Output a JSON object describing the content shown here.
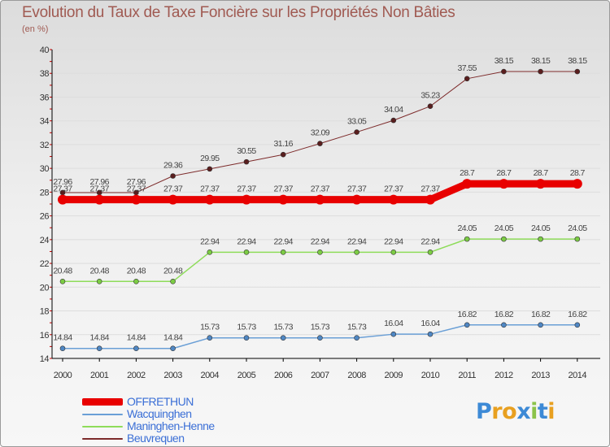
{
  "chart_data": {
    "type": "line",
    "title": "Evolution du Taux de Taxe Foncière sur les Propriétés Non Bâties",
    "subtitle": "(en %)",
    "ylim": [
      14,
      40
    ],
    "y_ticks": [
      "14",
      "16",
      "18",
      "20",
      "22",
      "24",
      "26",
      "28",
      "30",
      "32",
      "34",
      "36",
      "38",
      "40"
    ],
    "categories": [
      "2000",
      "2001",
      "2002",
      "2003",
      "2004",
      "2005",
      "2006",
      "2007",
      "2008",
      "2009",
      "2010",
      "2011",
      "2012",
      "2013",
      "2014"
    ],
    "grid": "horizontal",
    "legend_position": "bottom-left",
    "series": [
      {
        "name": "Beuvrequen",
        "color": "#7d2b2b",
        "marker": "#5a1e1e",
        "width": 1,
        "values": [
          27.96,
          27.96,
          27.96,
          29.36,
          29.95,
          30.55,
          31.16,
          32.09,
          33.05,
          34.04,
          35.23,
          37.55,
          38.15,
          38.15,
          38.15
        ],
        "labels": [
          "27.96",
          "27.96",
          "27.96",
          "29.36",
          "29.95",
          "30.55",
          "31.16",
          "32.09",
          "33.05",
          "34.04",
          "35.23",
          "37.55",
          "38.15",
          "38.15",
          "38.15"
        ]
      },
      {
        "name": "Maninghen-Henne",
        "color": "#8edc5a",
        "marker": "#7ccc44",
        "width": 1.5,
        "values": [
          20.48,
          20.48,
          20.48,
          20.48,
          22.94,
          22.94,
          22.94,
          22.94,
          22.94,
          22.94,
          22.94,
          24.05,
          24.05,
          24.05,
          24.05
        ],
        "labels": [
          "20.48",
          "20.48",
          "20.48",
          "20.48",
          "22.94",
          "22.94",
          "22.94",
          "22.94",
          "22.94",
          "22.94",
          "22.94",
          "24.05",
          "24.05",
          "24.05",
          "24.05"
        ]
      },
      {
        "name": "Wacquinghen",
        "color": "#6a9fd6",
        "marker": "#4f87c4",
        "width": 1.5,
        "values": [
          14.84,
          14.84,
          14.84,
          14.84,
          15.73,
          15.73,
          15.73,
          15.73,
          15.73,
          16.04,
          16.04,
          16.82,
          16.82,
          16.82,
          16.82
        ],
        "labels": [
          "14.84",
          "14.84",
          "14.84",
          "14.84",
          "15.73",
          "15.73",
          "15.73",
          "15.73",
          "15.73",
          "16.04",
          "16.04",
          "16.82",
          "16.82",
          "16.82",
          "16.82"
        ]
      },
      {
        "name": "OFFRETHUN",
        "color": "#e80000",
        "marker": "#e80000",
        "width": 9,
        "values": [
          27.37,
          27.37,
          27.37,
          27.37,
          27.37,
          27.37,
          27.37,
          27.37,
          27.37,
          27.37,
          27.37,
          28.7,
          28.7,
          28.7,
          28.7
        ],
        "labels": [
          "27.37",
          "27.37",
          "27.37",
          "27.37",
          "27.37",
          "27.37",
          "27.37",
          "27.37",
          "27.37",
          "27.37",
          "27.37",
          "28.7",
          "28.7",
          "28.7",
          "28.7"
        ]
      }
    ]
  },
  "legend": {
    "items": [
      {
        "label": "OFFRETHUN",
        "color": "#e80000"
      },
      {
        "label": "Wacquinghen",
        "color": "#6a9fd6"
      },
      {
        "label": "Maninghen-Henne",
        "color": "#8edc5a"
      },
      {
        "label": "Beuvrequen",
        "color": "#7d2b2b"
      }
    ]
  },
  "logo": {
    "letters": [
      "P",
      "r",
      "o",
      "x",
      "i",
      "t",
      "i"
    ],
    "colors": [
      "#3d8ad6",
      "#e8a020",
      "#e8a020",
      "#3d8ad6",
      "#8bc34a",
      "#3d8ad6",
      "#e8a020"
    ]
  }
}
